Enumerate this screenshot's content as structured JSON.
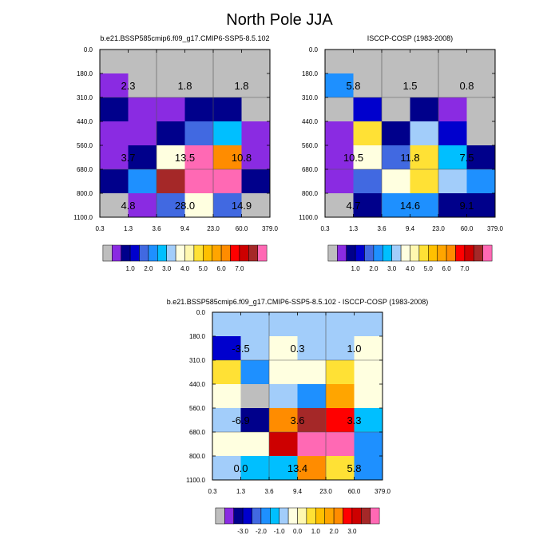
{
  "figure_title": "North Pole JJA",
  "palette": [
    "#bebebe",
    "#8a2be2",
    "#00008b",
    "#0000cd",
    "#4169e1",
    "#1e90ff",
    "#00bfff",
    "#a2cdfa",
    "#ffffe0",
    "#fff8b0",
    "#ffe135",
    "#ffc000",
    "#ffa500",
    "#ff8c00",
    "#ff0000",
    "#cd0000",
    "#a52828",
    "#ff69b4"
  ],
  "chart_data": [
    {
      "type": "heatmap",
      "name": "model",
      "title": "b.e21.BSSP585cmip6.f09_g17.CMIP6-SSP5-8.5.102",
      "x_ticks": [
        "0.3",
        "1.3",
        "3.6",
        "9.4",
        "23.0",
        "60.0",
        "379.0"
      ],
      "y_ticks": [
        "0.0",
        "180.0",
        "310.0",
        "440.0",
        "560.0",
        "680.0",
        "800.0",
        "1100.0"
      ],
      "cell_colors": [
        [
          0,
          0,
          0,
          0,
          0,
          0
        ],
        [
          1,
          0,
          0,
          0,
          0,
          0
        ],
        [
          2,
          1,
          1,
          2,
          2,
          0
        ],
        [
          1,
          1,
          2,
          4,
          6,
          1
        ],
        [
          1,
          2,
          8,
          17,
          13,
          1
        ],
        [
          2,
          5,
          16,
          17,
          17,
          2
        ],
        [
          0,
          1,
          4,
          8,
          4,
          0
        ]
      ],
      "labels": [
        {
          "value": "2.3",
          "col": 0,
          "row": 1
        },
        {
          "value": "1.8",
          "col": 2,
          "row": 1
        },
        {
          "value": "1.8",
          "col": 4,
          "row": 1
        },
        {
          "value": "3.7",
          "col": 0,
          "row": 4
        },
        {
          "value": "13.5",
          "col": 2,
          "row": 4
        },
        {
          "value": "10.8",
          "col": 4,
          "row": 4
        },
        {
          "value": "4.8",
          "col": 0,
          "row": 6
        },
        {
          "value": "28.0",
          "col": 2,
          "row": 6
        },
        {
          "value": "14.9",
          "col": 4,
          "row": 6
        }
      ],
      "colorbar_labels": [
        "1.0",
        "2.0",
        "3.0",
        "4.0",
        "5.0",
        "6.0",
        "7.0"
      ]
    },
    {
      "type": "heatmap",
      "name": "obs",
      "title": "ISCCP-COSP (1983-2008)",
      "x_ticks": [
        "0.3",
        "1.3",
        "3.6",
        "9.4",
        "23.0",
        "60.0",
        "379.0"
      ],
      "y_ticks": [
        "0.0",
        "180.0",
        "310.0",
        "440.0",
        "560.0",
        "680.0",
        "800.0",
        "1100.0"
      ],
      "cell_colors": [
        [
          0,
          0,
          0,
          0,
          0,
          0
        ],
        [
          5,
          0,
          0,
          0,
          0,
          0
        ],
        [
          0,
          3,
          0,
          2,
          1,
          0
        ],
        [
          1,
          10,
          2,
          7,
          3,
          0
        ],
        [
          1,
          8,
          4,
          10,
          6,
          2
        ],
        [
          1,
          4,
          8,
          10,
          7,
          5
        ],
        [
          0,
          2,
          5,
          5,
          2,
          2
        ]
      ],
      "labels": [
        {
          "value": "5.8",
          "col": 0,
          "row": 1
        },
        {
          "value": "1.5",
          "col": 2,
          "row": 1
        },
        {
          "value": "0.8",
          "col": 4,
          "row": 1
        },
        {
          "value": "10.5",
          "col": 0,
          "row": 4
        },
        {
          "value": "11.8",
          "col": 2,
          "row": 4
        },
        {
          "value": "7.5",
          "col": 4,
          "row": 4
        },
        {
          "value": "4.7",
          "col": 0,
          "row": 6
        },
        {
          "value": "14.6",
          "col": 2,
          "row": 6
        },
        {
          "value": "9.1",
          "col": 4,
          "row": 6
        }
      ],
      "colorbar_labels": [
        "1.0",
        "2.0",
        "3.0",
        "4.0",
        "5.0",
        "6.0",
        "7.0"
      ]
    },
    {
      "type": "heatmap",
      "name": "diff",
      "title": "b.e21.BSSP585cmip6.f09_g17.CMIP6-SSP5-8.5.102 - ISCCP-COSP (1983-2008)",
      "x_ticks": [
        "0.3",
        "1.3",
        "3.6",
        "9.4",
        "23.0",
        "60.0",
        "379.0"
      ],
      "y_ticks": [
        "0.0",
        "180.0",
        "310.0",
        "440.0",
        "560.0",
        "680.0",
        "800.0",
        "1100.0"
      ],
      "cell_colors": [
        [
          7,
          7,
          7,
          7,
          7,
          7
        ],
        [
          3,
          7,
          8,
          7,
          7,
          8
        ],
        [
          10,
          5,
          8,
          8,
          10,
          8
        ],
        [
          8,
          0,
          7,
          5,
          12,
          8
        ],
        [
          7,
          2,
          13,
          16,
          14,
          6
        ],
        [
          8,
          8,
          15,
          17,
          17,
          5
        ],
        [
          7,
          6,
          6,
          13,
          10,
          5
        ]
      ],
      "labels": [
        {
          "value": "-3.5",
          "col": 0,
          "row": 1
        },
        {
          "value": "0.3",
          "col": 2,
          "row": 1
        },
        {
          "value": "1.0",
          "col": 4,
          "row": 1
        },
        {
          "value": "-6.9",
          "col": 0,
          "row": 4
        },
        {
          "value": "3.6",
          "col": 2,
          "row": 4
        },
        {
          "value": "3.3",
          "col": 4,
          "row": 4
        },
        {
          "value": "0.0",
          "col": 0,
          "row": 6
        },
        {
          "value": "13.4",
          "col": 2,
          "row": 6
        },
        {
          "value": "5.8",
          "col": 4,
          "row": 6
        }
      ],
      "colorbar_labels": [
        "-3.0",
        "-2.0",
        "-1.0",
        "0.0",
        "1.0",
        "2.0",
        "3.0"
      ]
    }
  ]
}
